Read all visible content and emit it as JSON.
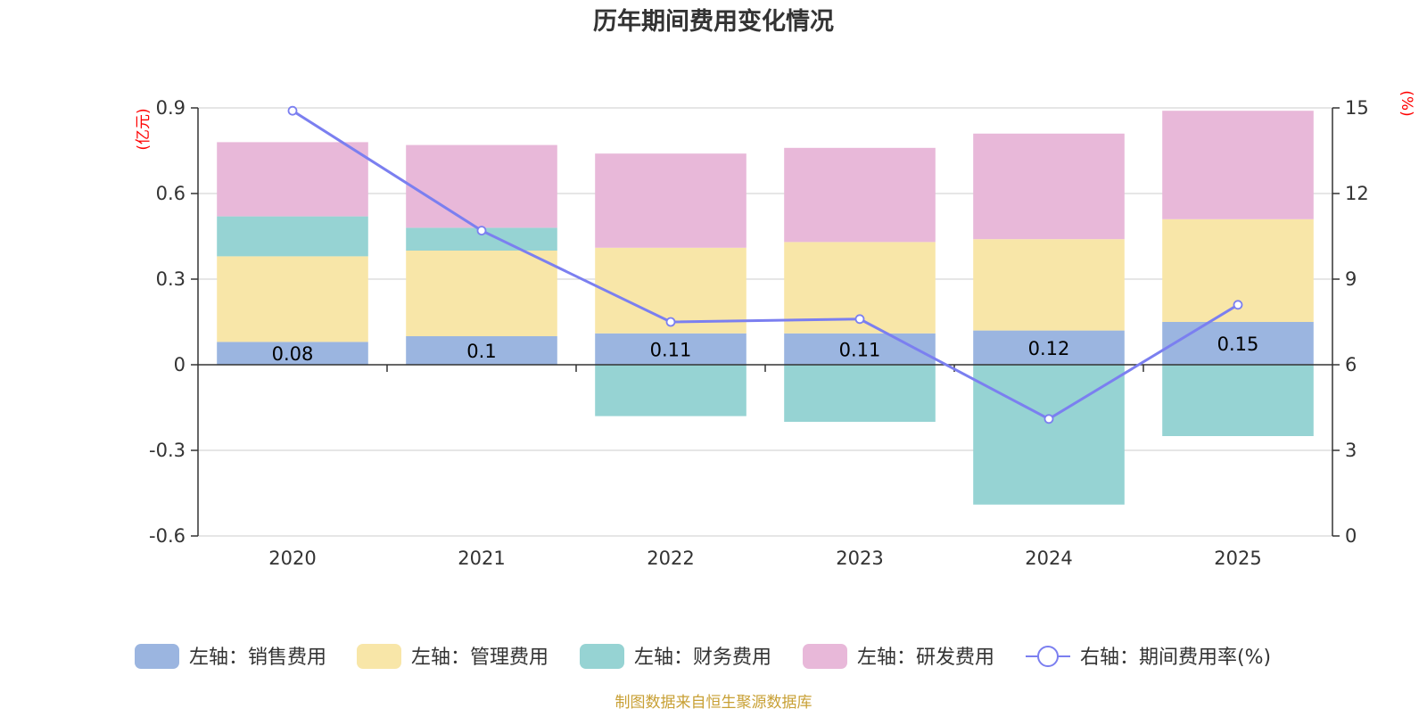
{
  "chart_data": {
    "type": "bar",
    "title": "历年期间费用变化情况",
    "categories": [
      "2020",
      "2021",
      "2022",
      "2023",
      "2024",
      "2025"
    ],
    "left_axis": {
      "unit": "(亿元)",
      "ylim": [
        -0.6,
        0.9
      ],
      "ticks": [
        0.9,
        0.6,
        0.3,
        0,
        -0.3,
        -0.6
      ],
      "tick_labels": [
        "0.9",
        "0.6",
        "0.3",
        "0",
        "-0.3",
        "-0.6"
      ]
    },
    "right_axis": {
      "unit": "(%)",
      "ylim": [
        0,
        15
      ],
      "ticks": [
        15,
        12,
        9,
        6,
        3,
        0
      ],
      "tick_labels": [
        "15",
        "12",
        "9",
        "6",
        "3",
        "0"
      ]
    },
    "series": [
      {
        "name": "左轴：销售费用",
        "type": "bar",
        "axis": "left",
        "color": "#9bb5e0",
        "values": [
          0.08,
          0.1,
          0.11,
          0.11,
          0.12,
          0.15
        ],
        "labels": [
          "0.08",
          "0.1",
          "0.11",
          "0.11",
          "0.12",
          "0.15"
        ]
      },
      {
        "name": "左轴：管理费用",
        "type": "bar",
        "axis": "left",
        "color": "#f8e6a8",
        "values": [
          0.3,
          0.3,
          0.3,
          0.32,
          0.32,
          0.36
        ]
      },
      {
        "name": "左轴：财务费用",
        "type": "bar",
        "axis": "left",
        "color": "#96d3d3",
        "values": [
          0.14,
          0.08,
          -0.18,
          -0.2,
          -0.49,
          -0.25
        ]
      },
      {
        "name": "左轴：研发费用",
        "type": "bar",
        "axis": "left",
        "color": "#e8b8d9",
        "values": [
          0.26,
          0.29,
          0.33,
          0.33,
          0.37,
          0.38
        ]
      },
      {
        "name": "右轴：期间费用率(%)",
        "type": "line",
        "axis": "right",
        "color": "#7b7ff0",
        "values": [
          14.9,
          10.7,
          7.5,
          7.6,
          4.1,
          8.1
        ]
      }
    ],
    "legend_position": "bottom",
    "grid": true
  },
  "source_note": "制图数据来自恒生聚源数据库"
}
